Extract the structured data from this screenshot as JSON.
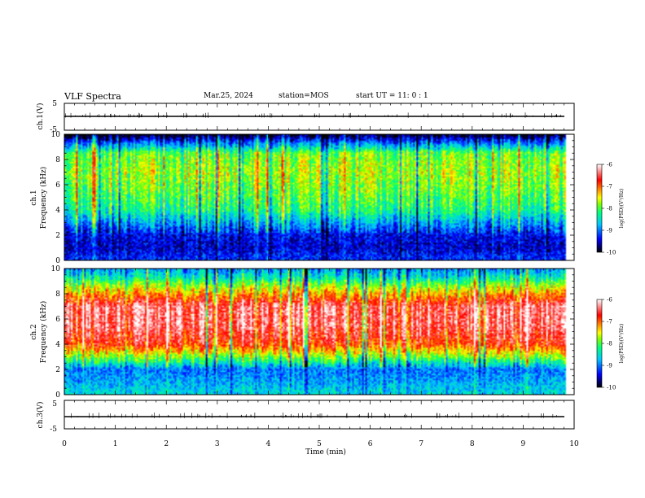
{
  "header": {
    "title": "VLF Spectra",
    "date": "Mar.25, 2024",
    "station": "station=MOS",
    "start_ut": "start UT =  11: 0  : 1"
  },
  "colors": {
    "colormap": [
      "#000000",
      "#0000ff",
      "#00c8ff",
      "#00ff80",
      "#80ff00",
      "#ffff00",
      "#ff8000",
      "#ff0000",
      "#ffffff"
    ],
    "frame": "#000000",
    "background": "#ffffff"
  },
  "chart_data": [
    {
      "type": "line",
      "panel": "ch1-waveform",
      "ylabel": "ch.1(V)",
      "ylim": [
        -5,
        5
      ],
      "yticks": [
        "5",
        "-5"
      ],
      "x": [
        0,
        10
      ],
      "y": [
        0,
        0
      ]
    },
    {
      "type": "heatmap",
      "panel": "ch1-spectrogram",
      "ylabel": "ch.1\nFrequency (kHz)",
      "ylim": [
        0,
        10
      ],
      "yticks": [
        "0",
        "2",
        "4",
        "6",
        "8",
        "10"
      ],
      "xlim": [
        0,
        10
      ],
      "data_end_min": 9.85,
      "profile": [
        {
          "freq_khz": 0.3,
          "level": -9.3
        },
        {
          "freq_khz": 1.0,
          "level": -9.5
        },
        {
          "freq_khz": 2.0,
          "level": -9.4
        },
        {
          "freq_khz": 3.0,
          "level": -8.8
        },
        {
          "freq_khz": 4.0,
          "level": -8.2
        },
        {
          "freq_khz": 5.5,
          "level": -7.9
        },
        {
          "freq_khz": 7.0,
          "level": -7.7
        },
        {
          "freq_khz": 8.5,
          "level": -7.9
        },
        {
          "freq_khz": 9.3,
          "level": -9.0
        },
        {
          "freq_khz": 10.0,
          "level": -10.0
        }
      ],
      "colorbar": {
        "label": "log(PSD)(V²/Hz)",
        "range": [
          -10,
          -6
        ],
        "ticks": [
          "-6",
          "-7",
          "-8",
          "-9",
          "-10"
        ]
      }
    },
    {
      "type": "heatmap",
      "panel": "ch2-spectrogram",
      "ylabel": "ch.2\nFrequency (kHz)",
      "ylim": [
        0,
        10
      ],
      "yticks": [
        "0",
        "2",
        "4",
        "6",
        "8",
        "10"
      ],
      "xlim": [
        0,
        10
      ],
      "data_end_min": 9.85,
      "profile": [
        {
          "freq_khz": 0.3,
          "level": -8.6
        },
        {
          "freq_khz": 1.0,
          "level": -8.8
        },
        {
          "freq_khz": 2.0,
          "level": -9.0
        },
        {
          "freq_khz": 3.0,
          "level": -7.8
        },
        {
          "freq_khz": 4.0,
          "level": -6.8
        },
        {
          "freq_khz": 5.5,
          "level": -6.4
        },
        {
          "freq_khz": 7.0,
          "level": -6.4
        },
        {
          "freq_khz": 8.5,
          "level": -7.6
        },
        {
          "freq_khz": 9.3,
          "level": -8.4
        },
        {
          "freq_khz": 10.0,
          "level": -8.9
        }
      ],
      "colorbar": {
        "label": "log(PSD)(V²/Hz)",
        "range": [
          -10,
          -6
        ],
        "ticks": [
          "-6",
          "-7",
          "-8",
          "-9",
          "-10"
        ]
      }
    },
    {
      "type": "line",
      "panel": "ch3-waveform",
      "ylabel": "ch.3(V)",
      "ylim": [
        -5,
        5
      ],
      "yticks": [
        "5",
        "-5"
      ],
      "x": [
        0,
        10
      ],
      "y": [
        0,
        0
      ]
    }
  ],
  "xaxis": {
    "label": "Time (min)",
    "ticks": [
      "0",
      "1",
      "2",
      "3",
      "4",
      "5",
      "6",
      "7",
      "8",
      "9",
      "10"
    ]
  }
}
